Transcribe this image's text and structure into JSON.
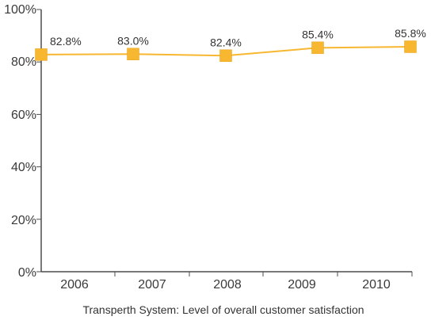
{
  "chart_data": {
    "type": "line",
    "categories": [
      "2006",
      "2007",
      "2008",
      "2009",
      "2010"
    ],
    "series": [
      {
        "values": [
          82.8,
          83.0,
          82.4,
          85.4,
          85.8
        ]
      }
    ],
    "data_labels": [
      "82.8%",
      "83.0%",
      "82.4%",
      "85.4%",
      "85.8%"
    ],
    "y_ticks": [
      "0%",
      "20%",
      "40%",
      "60%",
      "80%",
      "100%"
    ],
    "ylim": [
      0,
      100
    ],
    "caption": "Transperth System: Level of overall customer satisfaction",
    "grid": false,
    "colors": {
      "line": "#F8B730",
      "marker": "#F8B730",
      "axis": "#4d4d4d"
    }
  }
}
